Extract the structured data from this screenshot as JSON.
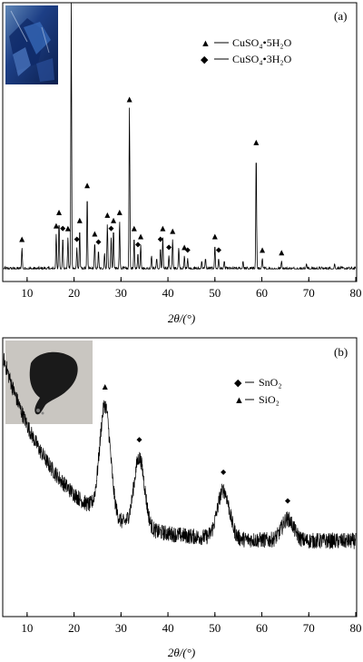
{
  "chart_data": [
    {
      "type": "line",
      "panel_label": "(a)",
      "xlabel": "2θ/(°)",
      "ylabel": "",
      "xlim": [
        5,
        80
      ],
      "xticks": [
        10,
        20,
        30,
        40,
        50,
        60,
        70,
        80
      ],
      "y_axis_values_shown": false,
      "grid": false,
      "legend_position": "top-right",
      "legend": [
        {
          "marker": "▲",
          "line": "—",
          "label": "CuSO₄•5H₂O"
        },
        {
          "marker": "◆",
          "line": "—",
          "label": "CuSO₄•3H₂O"
        }
      ],
      "inset_photo": "blue crystals (CuSO4 pentahydrate)",
      "series": [
        {
          "baseline": 0.04,
          "noise": 0.008,
          "peaks": [
            {
              "x": 8.9,
              "y": 0.08,
              "marker": "triangle"
            },
            {
              "x": 16.2,
              "y": 0.13,
              "marker": "triangle"
            },
            {
              "x": 16.8,
              "y": 0.18,
              "marker": "triangle"
            },
            {
              "x": 17.6,
              "y": 0.12,
              "marker": "diamond"
            },
            {
              "x": 18.7,
              "y": 0.12,
              "marker": "triangle"
            },
            {
              "x": 19.4,
              "y": 0.99,
              "marker": "triangle"
            },
            {
              "x": 20.6,
              "y": 0.08,
              "marker": "diamond"
            },
            {
              "x": 21.2,
              "y": 0.15,
              "marker": "triangle"
            },
            {
              "x": 22.8,
              "y": 0.28,
              "marker": "triangle"
            },
            {
              "x": 24.4,
              "y": 0.1,
              "marker": "triangle"
            },
            {
              "x": 25.2,
              "y": 0.07,
              "marker": "diamond"
            },
            {
              "x": 26.5,
              "y": 0.06
            },
            {
              "x": 27.1,
              "y": 0.17,
              "marker": "triangle"
            },
            {
              "x": 27.9,
              "y": 0.12,
              "marker": "diamond"
            },
            {
              "x": 28.4,
              "y": 0.15,
              "marker": "triangle"
            },
            {
              "x": 29.7,
              "y": 0.18,
              "marker": "triangle"
            },
            {
              "x": 31.8,
              "y": 0.6,
              "marker": "triangle"
            },
            {
              "x": 32.8,
              "y": 0.12,
              "marker": "triangle"
            },
            {
              "x": 33.6,
              "y": 0.06,
              "marker": "diamond"
            },
            {
              "x": 34.2,
              "y": 0.09,
              "marker": "triangle"
            },
            {
              "x": 36.5,
              "y": 0.05
            },
            {
              "x": 37.6,
              "y": 0.04
            },
            {
              "x": 38.4,
              "y": 0.08,
              "marker": "diamond"
            },
            {
              "x": 38.9,
              "y": 0.12,
              "marker": "triangle"
            },
            {
              "x": 40.2,
              "y": 0.05,
              "marker": "diamond"
            },
            {
              "x": 41.0,
              "y": 0.11,
              "marker": "triangle"
            },
            {
              "x": 42.3,
              "y": 0.08
            },
            {
              "x": 43.5,
              "y": 0.05,
              "marker": "triangle"
            },
            {
              "x": 44.2,
              "y": 0.04,
              "marker": "diamond"
            },
            {
              "x": 47.2,
              "y": 0.03
            },
            {
              "x": 48.0,
              "y": 0.04
            },
            {
              "x": 50.0,
              "y": 0.09,
              "marker": "triangle"
            },
            {
              "x": 50.8,
              "y": 0.04,
              "marker": "diamond"
            },
            {
              "x": 52.0,
              "y": 0.03
            },
            {
              "x": 56.0,
              "y": 0.03
            },
            {
              "x": 58.8,
              "y": 0.44,
              "marker": "triangle"
            },
            {
              "x": 60.1,
              "y": 0.04,
              "marker": "triangle"
            },
            {
              "x": 64.2,
              "y": 0.03,
              "marker": "triangle"
            },
            {
              "x": 69.5,
              "y": 0.02
            },
            {
              "x": 75.5,
              "y": 0.02
            }
          ]
        }
      ]
    },
    {
      "type": "line",
      "panel_label": "(b)",
      "xlabel": "2θ/(°)",
      "ylabel": "",
      "xlim": [
        5,
        80
      ],
      "xticks": [
        10,
        20,
        30,
        40,
        50,
        60,
        70,
        80
      ],
      "y_axis_values_shown": false,
      "grid": false,
      "legend_position": "top-right",
      "legend": [
        {
          "marker": "◆",
          "line": "—",
          "label": "SnO₂"
        },
        {
          "marker": "▲",
          "line": "—",
          "label": "SiO₂"
        }
      ],
      "inset_photo": "black powder on paper",
      "series": [
        {
          "background": {
            "start": 0.95,
            "decay": 0.09,
            "offset": 0.27
          },
          "noise": 0.03,
          "peaks": [
            {
              "x": 26.6,
              "height": 0.41,
              "width": 1.6,
              "marker": "triangle"
            },
            {
              "x": 33.9,
              "height": 0.26,
              "width": 1.6,
              "marker": "diamond"
            },
            {
              "x": 51.8,
              "height": 0.18,
              "width": 1.8,
              "marker": "diamond"
            },
            {
              "x": 65.5,
              "height": 0.08,
              "width": 1.8,
              "marker": "diamond"
            }
          ]
        }
      ]
    }
  ]
}
